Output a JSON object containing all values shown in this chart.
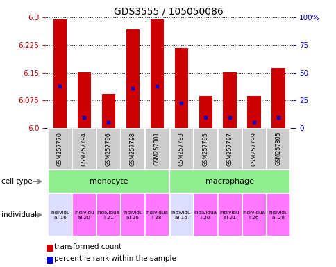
{
  "title": "GDS3555 / 105050086",
  "samples": [
    "GSM257770",
    "GSM257794",
    "GSM257796",
    "GSM257798",
    "GSM257801",
    "GSM257793",
    "GSM257795",
    "GSM257797",
    "GSM257799",
    "GSM257805"
  ],
  "bar_heights": [
    6.295,
    6.152,
    6.092,
    6.268,
    6.295,
    6.218,
    6.088,
    6.152,
    6.088,
    6.162
  ],
  "blue_dot_positions": [
    6.113,
    6.028,
    6.015,
    6.108,
    6.113,
    6.068,
    6.028,
    6.028,
    6.015,
    6.028
  ],
  "ylim": [
    6.0,
    6.3
  ],
  "yticks_left": [
    6.0,
    6.075,
    6.15,
    6.225,
    6.3
  ],
  "yticks_right": [
    0,
    25,
    50,
    75,
    100
  ],
  "yticks_right_labels": [
    "0",
    "25",
    "50",
    "75",
    "100%"
  ],
  "bar_color": "#CC0000",
  "dot_color": "#0000CC",
  "individual_labels": [
    "individu\nal 16",
    "individu\nal 20",
    "individua\nl 21",
    "individu\nal 26",
    "individua\nl 28",
    "individu\nal 16",
    "individua\nl 20",
    "individu\nal 21",
    "individua\nl 26",
    "individu\nal 28"
  ],
  "individual_colors": [
    "#DDDDFF",
    "#FF77FF",
    "#FF77FF",
    "#FF77FF",
    "#FF77FF",
    "#DDDDFF",
    "#FF77FF",
    "#FF77FF",
    "#FF77FF",
    "#FF77FF"
  ],
  "xlabel_color": "#CC0000",
  "right_ylabel_color": "#0000CC",
  "sample_bg_color": "#CCCCCC",
  "cell_type_color": "#90EE90"
}
